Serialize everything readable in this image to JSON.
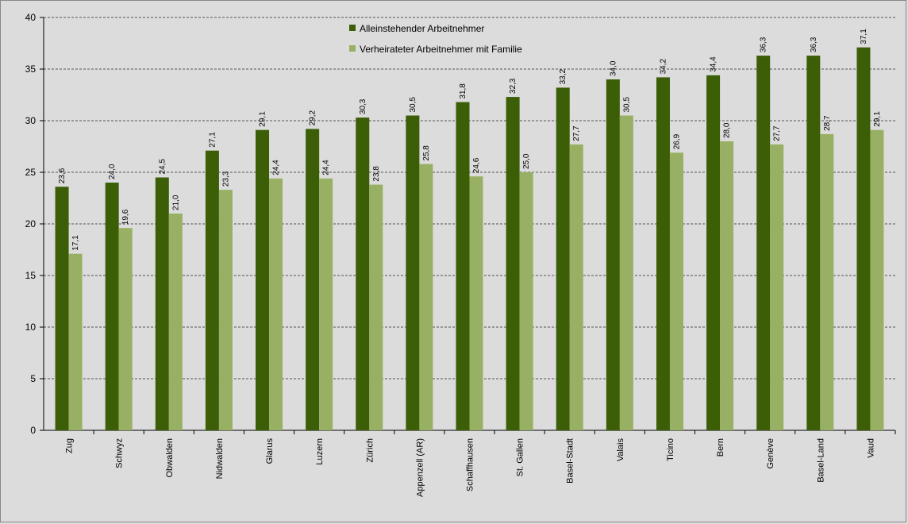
{
  "chart_data": {
    "type": "bar",
    "categories": [
      "Zug",
      "Schwyz",
      "Obwalden",
      "Nidwalden",
      "Glarus",
      "Luzern",
      "Zürich",
      "Appenzell (AR)",
      "Schaffhausen",
      "St. Gallen",
      "Basel-Stadt",
      "Valais",
      "Ticino",
      "Bern",
      "Genève",
      "Basel-Land",
      "Vaud"
    ],
    "series": [
      {
        "name": "Alleinstehender Arbeitnehmer",
        "color": "#3b5e07",
        "values": [
          23.6,
          24.0,
          24.5,
          27.1,
          29.1,
          29.2,
          30.3,
          30.5,
          31.8,
          32.3,
          33.2,
          34.0,
          34.2,
          34.4,
          36.3,
          36.3,
          37.1
        ],
        "value_labels": [
          "23,6",
          "24,0",
          "24,5",
          "27,1",
          "29,1",
          "29,2",
          "30,3",
          "30,5",
          "31,8",
          "32,3",
          "33,2",
          "34,0",
          "34,2",
          "34,4",
          "36,3",
          "36,3",
          "37,1"
        ]
      },
      {
        "name": "Verheirateter Arbeitnehmer mit Familie",
        "color": "#98b063",
        "values": [
          17.1,
          19.6,
          21.0,
          23.3,
          24.4,
          24.4,
          23.8,
          25.8,
          24.6,
          25.0,
          27.7,
          30.5,
          26.9,
          28.0,
          27.7,
          28.7,
          29.1
        ],
        "value_labels": [
          "17,1",
          "19,6",
          "21,0",
          "23,3",
          "24,4",
          "24,4",
          "23,8",
          "25,8",
          "24,6",
          "25,0",
          "27,7",
          "30,5",
          "26,9",
          "28,0",
          "27,7",
          "28,7",
          "29,1"
        ]
      }
    ],
    "ylim": [
      0,
      40
    ],
    "yticks": [
      0,
      5,
      10,
      15,
      20,
      25,
      30,
      35,
      40
    ],
    "grid": true,
    "legend": "top"
  }
}
